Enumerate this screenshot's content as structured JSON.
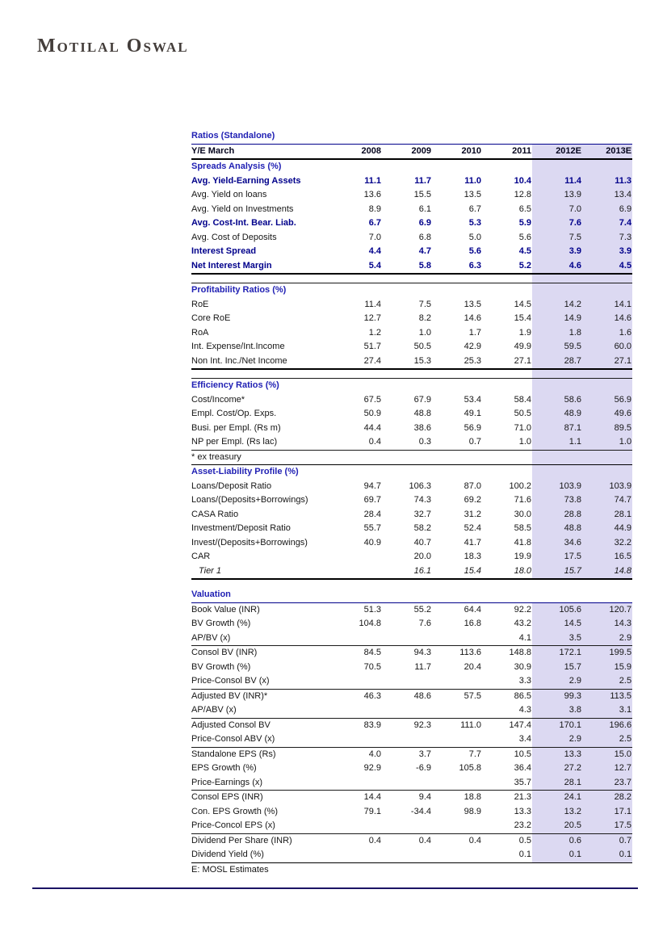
{
  "page": {
    "logo": "Motilal Oswal",
    "footnote": "E: MOSL Estimates"
  },
  "colors": {
    "highlight": "#dcd9f2",
    "navy_text": "#00008b",
    "section_blue": "#2121b4",
    "bottom_rule": "#1b1464"
  },
  "table": {
    "title": "Ratios (Standalone)",
    "header": {
      "label": "Y/E March",
      "columns": [
        "2008",
        "2009",
        "2010",
        "2011",
        "2012E",
        "2013E"
      ]
    },
    "highlighted_columns": [
      "2012E",
      "2013E"
    ],
    "sections": [
      {
        "name": "Spreads Analysis (%)",
        "rows": [
          {
            "label": "Avg. Yield-Earning Assets",
            "bold": true,
            "values": [
              "11.1",
              "11.7",
              "11.0",
              "10.4",
              "11.4",
              "11.3"
            ]
          },
          {
            "label": "Avg. Yield on loans",
            "bold": false,
            "values": [
              "13.6",
              "15.5",
              "13.5",
              "12.8",
              "13.9",
              "13.4"
            ]
          },
          {
            "label": "Avg. Yield on Investments",
            "bold": false,
            "values": [
              "8.9",
              "6.1",
              "6.7",
              "6.5",
              "7.0",
              "6.9"
            ]
          },
          {
            "label": "Avg. Cost-Int. Bear. Liab.",
            "bold": true,
            "values": [
              "6.7",
              "6.9",
              "5.3",
              "5.9",
              "7.6",
              "7.4"
            ]
          },
          {
            "label": "Avg. Cost of Deposits",
            "bold": false,
            "values": [
              "7.0",
              "6.8",
              "5.0",
              "5.6",
              "7.5",
              "7.3"
            ]
          },
          {
            "label": "Interest Spread",
            "bold": true,
            "values": [
              "4.4",
              "4.7",
              "5.6",
              "4.5",
              "3.9",
              "3.9"
            ]
          },
          {
            "label": "Net Interest Margin",
            "bold": true,
            "values": [
              "5.4",
              "5.8",
              "6.3",
              "5.2",
              "4.6",
              "4.5"
            ]
          }
        ]
      },
      {
        "name": "Profitability Ratios (%)",
        "rows": [
          {
            "label": "RoE",
            "values": [
              "11.4",
              "7.5",
              "13.5",
              "14.5",
              "14.2",
              "14.1"
            ]
          },
          {
            "label": "Core RoE",
            "values": [
              "12.7",
              "8.2",
              "14.6",
              "15.4",
              "14.9",
              "14.6"
            ]
          },
          {
            "label": "RoA",
            "values": [
              "1.2",
              "1.0",
              "1.7",
              "1.9",
              "1.8",
              "1.6"
            ]
          },
          {
            "label": "Int. Expense/Int.Income",
            "values": [
              "51.7",
              "50.5",
              "42.9",
              "49.9",
              "59.5",
              "60.0"
            ]
          },
          {
            "label": "Non Int. Inc./Net Income",
            "values": [
              "27.4",
              "15.3",
              "25.3",
              "27.1",
              "28.7",
              "27.1"
            ]
          }
        ]
      },
      {
        "name": "Efficiency Ratios (%)",
        "note": "* ex treasury",
        "rows": [
          {
            "label": "Cost/Income*",
            "values": [
              "67.5",
              "67.9",
              "53.4",
              "58.4",
              "58.6",
              "56.9"
            ]
          },
          {
            "label": "Empl. Cost/Op. Exps.",
            "values": [
              "50.9",
              "48.8",
              "49.1",
              "50.5",
              "48.9",
              "49.6"
            ]
          },
          {
            "label": "Busi. per Empl. (Rs m)",
            "values": [
              "44.4",
              "38.6",
              "56.9",
              "71.0",
              "87.1",
              "89.5"
            ]
          },
          {
            "label": "NP per Empl. (Rs lac)",
            "values": [
              "0.4",
              "0.3",
              "0.7",
              "1.0",
              "1.1",
              "1.0"
            ]
          }
        ]
      },
      {
        "name": "Asset-Liability Profile (%)",
        "rows": [
          {
            "label": "Loans/Deposit Ratio",
            "values": [
              "94.7",
              "106.3",
              "87.0",
              "100.2",
              "103.9",
              "103.9"
            ]
          },
          {
            "label": "Loans/(Deposits+Borrowings)",
            "values": [
              "69.7",
              "74.3",
              "69.2",
              "71.6",
              "73.8",
              "74.7"
            ]
          },
          {
            "label": "CASA Ratio",
            "values": [
              "28.4",
              "32.7",
              "31.2",
              "30.0",
              "28.8",
              "28.1"
            ]
          },
          {
            "label": "Investment/Deposit Ratio",
            "values": [
              "55.7",
              "58.2",
              "52.4",
              "58.5",
              "48.8",
              "44.9"
            ]
          },
          {
            "label": "Invest/(Deposits+Borrowings)",
            "values": [
              "40.9",
              "40.7",
              "41.7",
              "41.8",
              "34.6",
              "32.2"
            ]
          },
          {
            "label": "CAR",
            "values": [
              "",
              "20.0",
              "18.3",
              "19.9",
              "17.5",
              "16.5"
            ]
          },
          {
            "label": "Tier 1",
            "italic": true,
            "values": [
              "",
              "16.1",
              "15.4",
              "18.0",
              "15.7",
              "14.8"
            ]
          }
        ]
      },
      {
        "name": "Valuation",
        "rows": [
          {
            "label": "Book Value (INR)",
            "values": [
              "51.3",
              "55.2",
              "64.4",
              "92.2",
              "105.6",
              "120.7"
            ]
          },
          {
            "label": "BV Growth (%)",
            "values": [
              "104.8",
              "7.6",
              "16.8",
              "43.2",
              "14.5",
              "14.3"
            ]
          },
          {
            "label": "AP/BV (x)",
            "divider_after": true,
            "values": [
              "",
              "",
              "",
              "4.1",
              "3.5",
              "2.9"
            ]
          },
          {
            "label": "Consol BV (INR)",
            "values": [
              "84.5",
              "94.3",
              "113.6",
              "148.8",
              "172.1",
              "199.5"
            ]
          },
          {
            "label": "BV Growth (%)",
            "values": [
              "70.5",
              "11.7",
              "20.4",
              "30.9",
              "15.7",
              "15.9"
            ]
          },
          {
            "label": "Price-Consol BV (x)",
            "divider_after": true,
            "values": [
              "",
              "",
              "",
              "3.3",
              "2.9",
              "2.5"
            ]
          },
          {
            "label": "Adjusted BV (INR)*",
            "values": [
              "46.3",
              "48.6",
              "57.5",
              "86.5",
              "99.3",
              "113.5"
            ]
          },
          {
            "label": "AP/ABV (x)",
            "divider_after": true,
            "values": [
              "",
              "",
              "",
              "4.3",
              "3.8",
              "3.1"
            ]
          },
          {
            "label": "Adjusted Consol BV",
            "values": [
              "83.9",
              "92.3",
              "111.0",
              "147.4",
              "170.1",
              "196.6"
            ]
          },
          {
            "label": "Price-Consol ABV (x)",
            "divider_after": true,
            "values": [
              "",
              "",
              "",
              "3.4",
              "2.9",
              "2.5"
            ]
          },
          {
            "label": "Standalone EPS (Rs)",
            "values": [
              "4.0",
              "3.7",
              "7.7",
              "10.5",
              "13.3",
              "15.0"
            ]
          },
          {
            "label": "EPS Growth (%)",
            "values": [
              "92.9",
              "-6.9",
              "105.8",
              "36.4",
              "27.2",
              "12.7"
            ]
          },
          {
            "label": "Price-Earnings (x)",
            "divider_after": true,
            "values": [
              "",
              "",
              "",
              "35.7",
              "28.1",
              "23.7"
            ]
          },
          {
            "label": "Consol EPS (INR)",
            "values": [
              "14.4",
              "9.4",
              "18.8",
              "21.3",
              "24.1",
              "28.2"
            ]
          },
          {
            "label": "Con. EPS Growth (%)",
            "values": [
              "79.1",
              "-34.4",
              "98.9",
              "13.3",
              "13.2",
              "17.1"
            ]
          },
          {
            "label": "Price-Concol EPS (x)",
            "divider_after": true,
            "values": [
              "",
              "",
              "",
              "23.2",
              "20.5",
              "17.5"
            ]
          },
          {
            "label": "Dividend Per Share (INR)",
            "values": [
              "0.4",
              "0.4",
              "0.4",
              "0.5",
              "0.6",
              "0.7"
            ]
          },
          {
            "label": "Dividend Yield (%)",
            "values": [
              "",
              "",
              "",
              "0.1",
              "0.1",
              "0.1"
            ]
          }
        ]
      }
    ]
  }
}
